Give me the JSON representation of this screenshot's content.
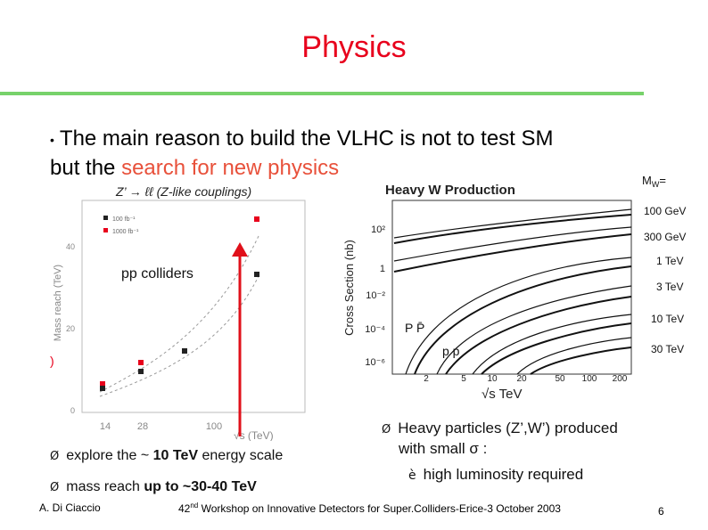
{
  "slide": {
    "title": "Physics",
    "headline": {
      "bullet": "•",
      "text_before": "The main reason to build the VLHC is not to test SM",
      "text_line2_before": "but the ",
      "highlight": "search for new physics"
    },
    "left_bullets": [
      {
        "arrow": "Ø",
        "before": "explore the ~ ",
        "bold": "10 TeV",
        "after": " energy scale"
      },
      {
        "arrow": "Ø",
        "before": "mass reach ",
        "bold": "up to ~30-40 TeV",
        "after": ""
      }
    ],
    "right_bullets": {
      "arrow": "Ø",
      "line1": "Heavy particles (Z’,W’) produced",
      "line2": "with small σ :",
      "sub_arrow": "è",
      "sub_text": "high luminosity required"
    },
    "footer": {
      "author": "A. Di Ciaccio",
      "workshop_sup": "nd",
      "workshop_pre": "42",
      "workshop": "Workshop on Innovative Detectors for Super.Colliders-Erice-3 October 2003",
      "page": "6"
    }
  },
  "left_plot": {
    "title_top": "Z’ → ℓℓ  (Z-like couplings)",
    "ylabel": "Mass reach (TeV)",
    "xlabel": "√s (TeV)",
    "y_ticks": [
      "40",
      "20",
      "0"
    ],
    "x_ticks": [
      "14",
      "28",
      "100"
    ],
    "legend": [
      "100 fb⁻¹",
      "1000 fb⁻¹"
    ],
    "annotation": "pp colliders",
    "side_mark": ")"
  },
  "right_plot": {
    "title": "Heavy W Production",
    "ylabel": "Cross Section (nb)",
    "xlabel": "√s  TeV",
    "y_ticks": [
      "10²",
      "1",
      "10⁻²",
      "10⁻⁴",
      "10⁻⁶"
    ],
    "x_ticks": [
      "2",
      "5",
      "10",
      "20",
      "50",
      "100",
      "200"
    ],
    "label_ppbar": "P P̄",
    "label_pp": "p p",
    "mw_header": "M",
    "mw_sub": "W",
    "mw_eq": "=",
    "masses": [
      "100 GeV",
      "300 GeV",
      "1 TeV",
      "3 TeV",
      "10 TeV",
      "30 TeV"
    ]
  },
  "colors": {
    "title": "#e8001c",
    "rule": "#77d26a",
    "highlight": "#e8513b",
    "arrow": "#e0101a"
  }
}
